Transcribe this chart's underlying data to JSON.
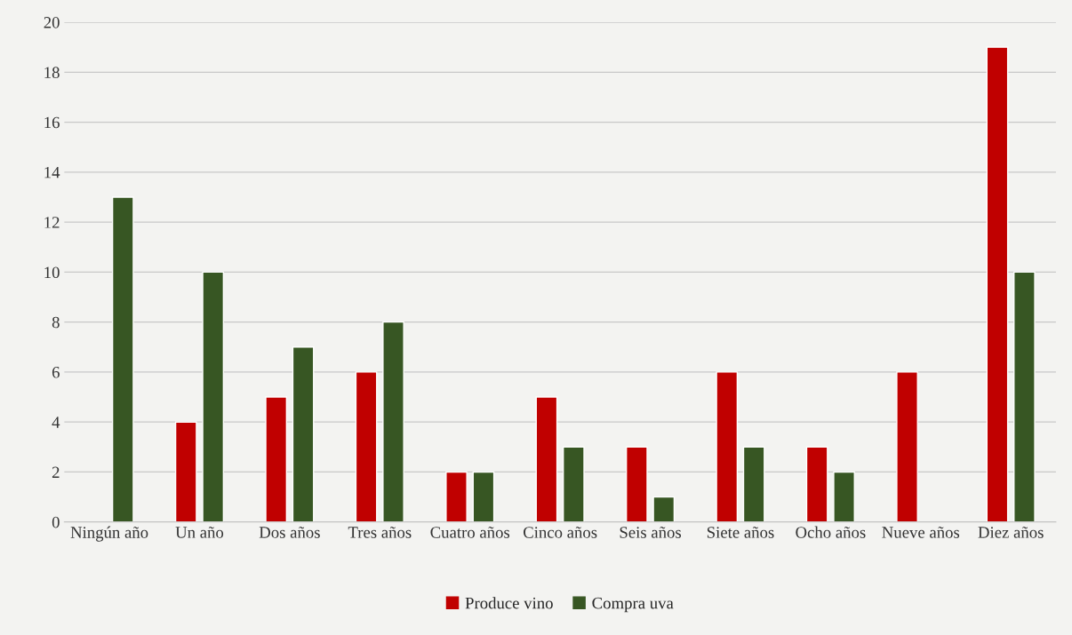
{
  "chart_data": {
    "type": "bar",
    "categories": [
      "Ningún año",
      "Un año",
      "Dos años",
      "Tres años",
      "Cuatro años",
      "Cinco años",
      "Seis años",
      "Siete años",
      "Ocho años",
      "Nueve años",
      "Diez años"
    ],
    "series": [
      {
        "name": "Produce vino",
        "color": "#c00000",
        "values": [
          null,
          4,
          5,
          6,
          2,
          5,
          3,
          6,
          3,
          6,
          19
        ]
      },
      {
        "name": "Compra uva",
        "color": "#375623",
        "values": [
          13,
          10,
          7,
          8,
          2,
          3,
          1,
          3,
          2,
          null,
          10
        ]
      }
    ],
    "ylim": [
      0,
      20
    ],
    "yticks": [
      0,
      2,
      4,
      6,
      8,
      10,
      12,
      14,
      16,
      18,
      20
    ],
    "grid": "y",
    "legend": "bottom"
  }
}
